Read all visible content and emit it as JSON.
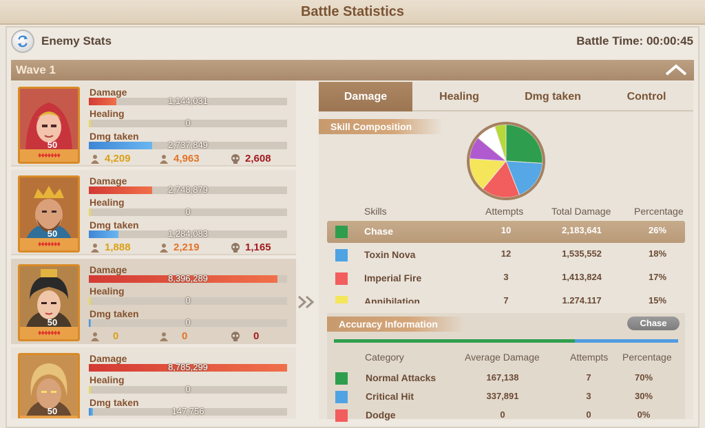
{
  "window": {
    "title": "Battle Statistics"
  },
  "header": {
    "section_title": "Enemy Stats",
    "battle_time": "Battle Time: 00:00:45"
  },
  "wave": {
    "label": "Wave 1"
  },
  "stat_labels": {
    "damage": "Damage",
    "healing": "Healing",
    "dmg_taken": "Dmg taken"
  },
  "heroes": [
    {
      "level": "50",
      "stars": "♦♦♦♦♦♦♦",
      "damage": "1,144,031",
      "damage_fill": 0.14,
      "healing": "0",
      "healing_fill": 0.01,
      "dmg_taken": "2,737,849",
      "dmg_taken_fill": 0.32,
      "kills": "4,209",
      "assists": "4,963",
      "deaths": "2,608"
    },
    {
      "level": "50",
      "stars": "♦♦♦♦♦♦♦",
      "damage": "2,748,879",
      "damage_fill": 0.32,
      "healing": "0",
      "healing_fill": 0.01,
      "dmg_taken": "1,284,083",
      "dmg_taken_fill": 0.15,
      "kills": "1,888",
      "assists": "2,219",
      "deaths": "1,165"
    },
    {
      "level": "50",
      "stars": "♦♦♦♦♦♦♦",
      "damage": "8,396,289",
      "damage_fill": 0.95,
      "healing": "0",
      "healing_fill": 0.01,
      "dmg_taken": "0",
      "dmg_taken_fill": 0.01,
      "kills": "0",
      "assists": "0",
      "deaths": "0"
    },
    {
      "level": "50",
      "stars": "♦♦♦♦♦♦♦",
      "damage": "8,785,299",
      "damage_fill": 1.0,
      "healing": "0",
      "healing_fill": 0.01,
      "dmg_taken": "147,756",
      "dmg_taken_fill": 0.02
    }
  ],
  "tabs": [
    {
      "label": "Damage",
      "active": true
    },
    {
      "label": "Healing",
      "active": false
    },
    {
      "label": "Dmg taken",
      "active": false
    },
    {
      "label": "Control",
      "active": false
    }
  ],
  "skill_composition": {
    "title": "Skill Composition",
    "headers": {
      "skills": "Skills",
      "attempts": "Attempts",
      "total_damage": "Total Damage",
      "percentage": "Percentage"
    },
    "rows": [
      {
        "name": "Chase",
        "color": "#2e9e4e",
        "attempts": "10",
        "total_damage": "2,183,641",
        "percentage": "26%",
        "selected": true
      },
      {
        "name": "Toxin Nova",
        "color": "#4fa3e3",
        "attempts": "12",
        "total_damage": "1,535,552",
        "percentage": "18%",
        "selected": false
      },
      {
        "name": "Imperial Fire",
        "color": "#f25d5d",
        "attempts": "3",
        "total_damage": "1,413,824",
        "percentage": "17%",
        "selected": false
      },
      {
        "name": "Annihilation",
        "color": "#f5e55a",
        "attempts": "7",
        "total_damage": "1,274,117",
        "percentage": "15%",
        "selected": false
      }
    ]
  },
  "pie": [
    {
      "color": "#2e9e4e",
      "value": 26
    },
    {
      "color": "#55a7e6",
      "value": 18
    },
    {
      "color": "#f25d5d",
      "value": 17
    },
    {
      "color": "#f5e55a",
      "value": 15
    },
    {
      "color": "#b05ad0",
      "value": 10
    },
    {
      "color": "#ffffff",
      "value": 9
    },
    {
      "color": "#b6d83a",
      "value": 5
    }
  ],
  "accuracy": {
    "title": "Accuracy Information",
    "filter_label": "Chase",
    "split_bar": {
      "green": 0.7,
      "blue": 0.3
    },
    "headers": {
      "category": "Category",
      "average_damage": "Average Damage",
      "attempts": "Attempts",
      "percentage": "Percentage"
    },
    "rows": [
      {
        "name": "Normal Attacks",
        "color": "#2e9e4e",
        "average_damage": "167,138",
        "attempts": "7",
        "percentage": "70%"
      },
      {
        "name": "Critical Hit",
        "color": "#4fa3e3",
        "average_damage": "337,891",
        "attempts": "3",
        "percentage": "30%"
      },
      {
        "name": "Dodge",
        "color": "#f25d5d",
        "average_damage": "0",
        "attempts": "0",
        "percentage": "0%"
      }
    ]
  }
}
